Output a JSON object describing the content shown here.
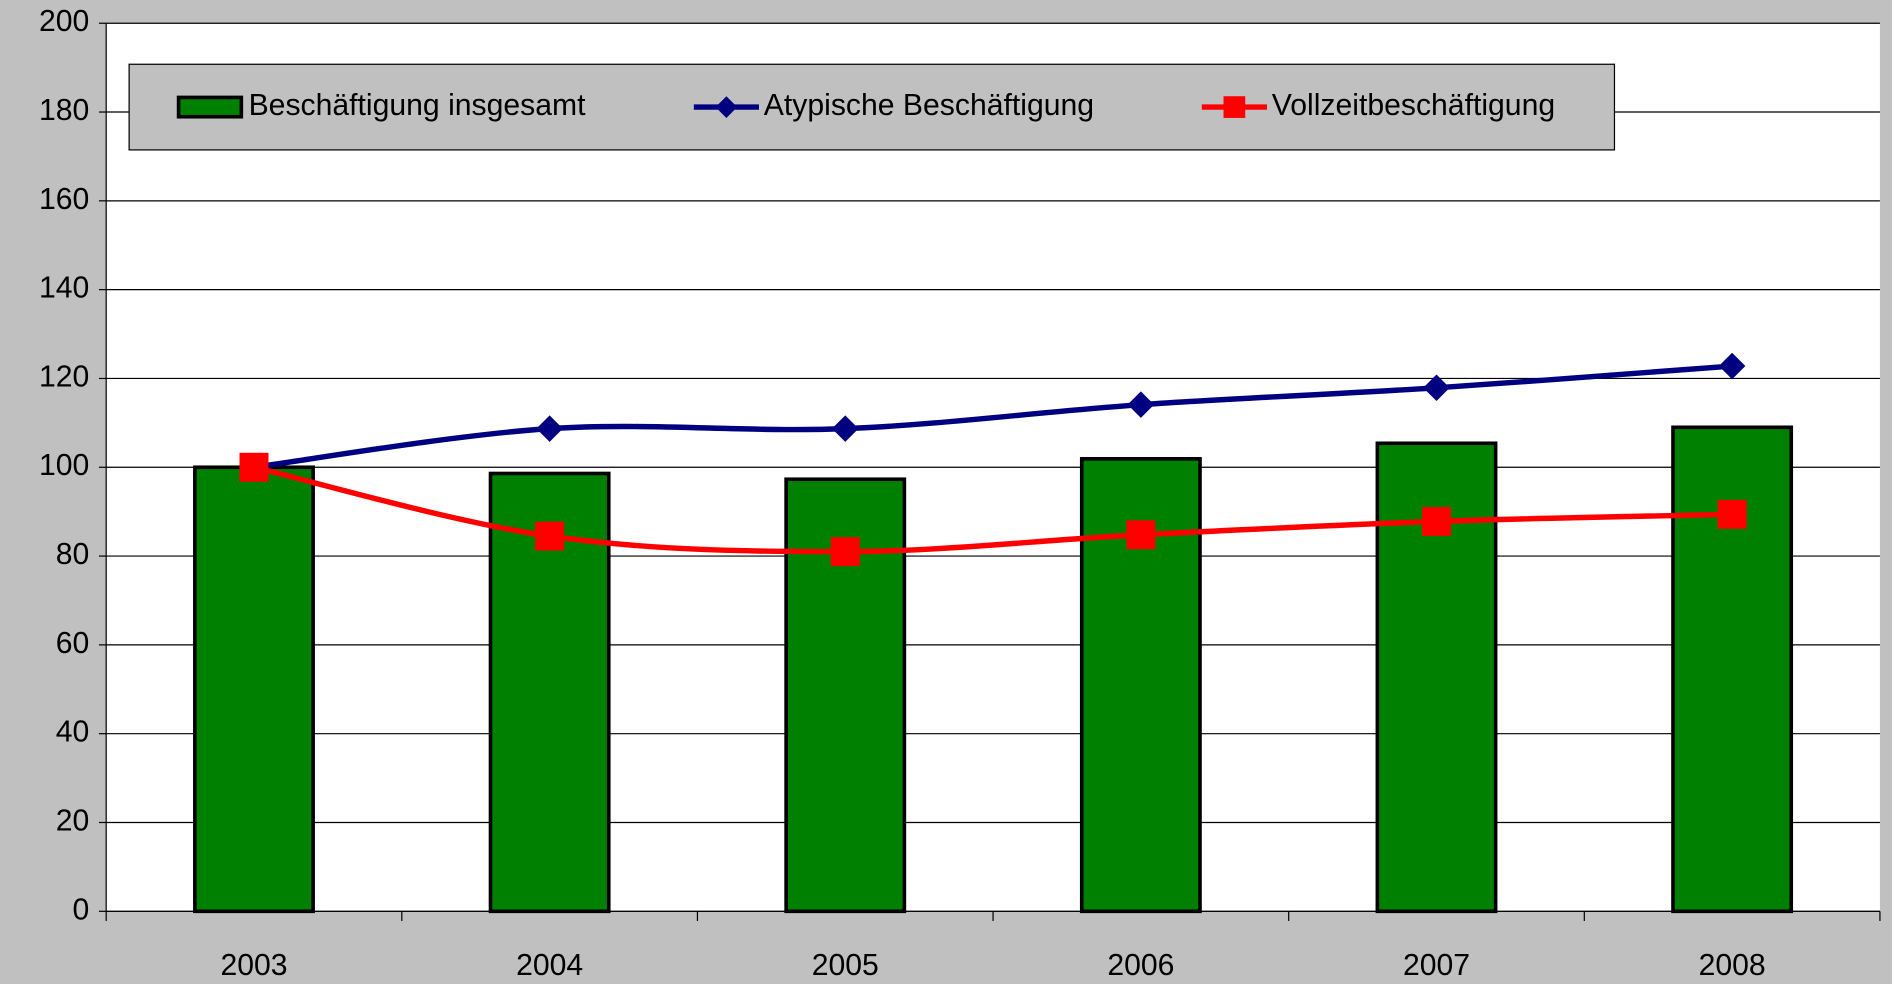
{
  "chart_data": {
    "type": "bar-line",
    "categories": [
      "2003",
      "2004",
      "2005",
      "2006",
      "2007",
      "2008"
    ],
    "series": [
      {
        "name": "Beschäftigung insgesamt",
        "type": "bar",
        "color": "#008000",
        "values": [
          100,
          98.6,
          97.3,
          101.9,
          105.4,
          109
        ]
      },
      {
        "name": "Atypische Beschäftigung",
        "type": "line",
        "color": "#000080",
        "marker": "diamond",
        "values": [
          100,
          108.7,
          108.7,
          114.1,
          117.9,
          122.8
        ]
      },
      {
        "name": "Vollzeitbeschäftigung",
        "type": "line",
        "color": "#ff0000",
        "marker": "square",
        "values": [
          100,
          84.5,
          81,
          84.8,
          87.8,
          89.4
        ]
      }
    ],
    "ylim": [
      0,
      200
    ],
    "yticks": [
      0,
      20,
      40,
      60,
      80,
      100,
      120,
      140,
      160,
      180,
      200
    ],
    "grid": true,
    "legend": "top"
  }
}
